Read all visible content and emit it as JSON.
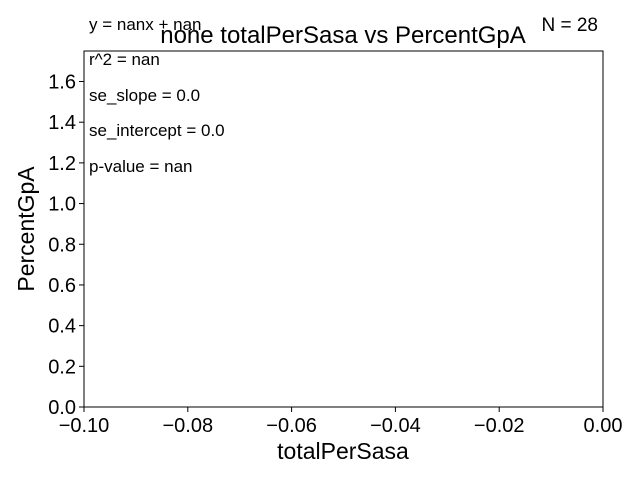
{
  "chart_data": {
    "type": "scatter",
    "title": "none totalPerSasa vs PercentGpA",
    "xlabel": "totalPerSasa",
    "ylabel": "PercentGpA",
    "xlim": [
      -0.1,
      0.0
    ],
    "ylim": [
      0.0,
      1.75
    ],
    "x_ticks": [
      -0.1,
      -0.08,
      -0.06,
      -0.04,
      -0.02,
      0.0
    ],
    "x_tick_labels": [
      "−0.10",
      "−0.08",
      "−0.06",
      "−0.04",
      "−0.02",
      "0.00"
    ],
    "y_ticks": [
      0.0,
      0.2,
      0.4,
      0.6,
      0.8,
      1.0,
      1.2,
      1.4,
      1.6
    ],
    "y_tick_labels": [
      "0.0",
      "0.2",
      "0.4",
      "0.6",
      "0.8",
      "1.0",
      "1.2",
      "1.4",
      "1.6"
    ],
    "series": [],
    "grid": false,
    "annotations": {
      "equation": "y = nanx + nan",
      "n": "N = 28",
      "r2": "r^2 = nan",
      "se_slope": "se_slope = 0.0",
      "se_intercept": "se_intercept = 0.0",
      "p_value": "p-value = nan"
    }
  }
}
